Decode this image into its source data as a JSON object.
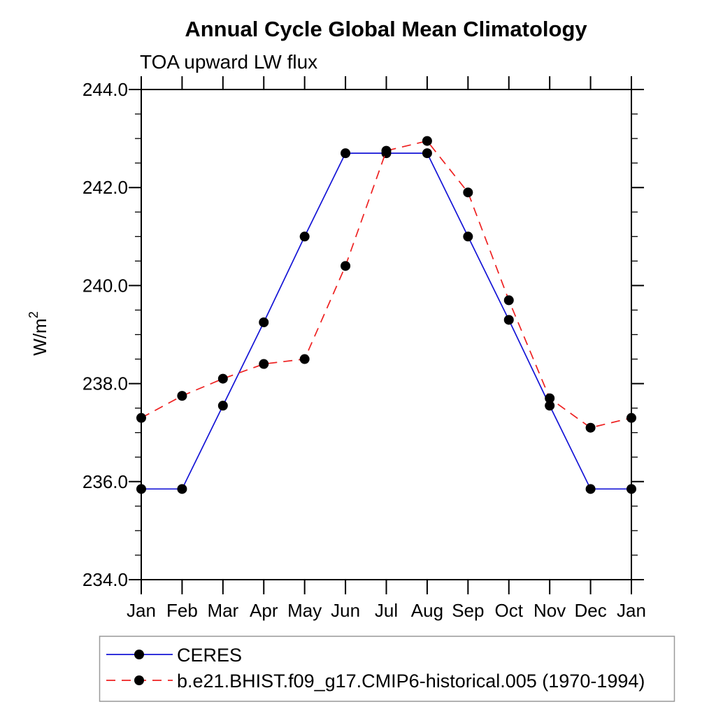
{
  "page": {
    "background": "#ffffff",
    "axis_color": "#000000",
    "legend_border_color": "#999999"
  },
  "chart_data": {
    "type": "line",
    "title": "Annual Cycle Global Mean Climatology",
    "subtitle": "TOA upward LW flux",
    "ylabel": "W/m",
    "ylabel_superscript": "2",
    "xlabel": "",
    "categories": [
      "Jan",
      "Feb",
      "Mar",
      "Apr",
      "May",
      "Jun",
      "Jul",
      "Aug",
      "Sep",
      "Oct",
      "Nov",
      "Dec",
      "Jan"
    ],
    "series": [
      {
        "name": "CERES",
        "color": "#1414d6",
        "line_style": "solid",
        "marker": "filled-circle",
        "marker_color": "#000000",
        "values": [
          235.85,
          235.85,
          237.55,
          239.25,
          241.0,
          242.7,
          242.7,
          242.7,
          241.0,
          239.3,
          237.55,
          235.85,
          235.85
        ]
      },
      {
        "name": "b.e21.BHIST.f09_g17.CMIP6-historical.005 (1970-1994)",
        "color": "#ee2020",
        "line_style": "dashed",
        "marker": "filled-circle",
        "marker_color": "#000000",
        "values": [
          237.3,
          237.75,
          238.1,
          238.4,
          238.5,
          240.4,
          242.75,
          242.95,
          241.9,
          239.7,
          237.7,
          237.1,
          237.3
        ]
      }
    ],
    "ylim": [
      234.0,
      244.0
    ],
    "ytick_major_step": 2.0,
    "ytick_minor_step": 0.5,
    "ytick_labels": [
      "244.0",
      "242.0",
      "240.0",
      "238.0",
      "236.0",
      "234.0"
    ],
    "grid": false,
    "legend_position": "bottom-left"
  }
}
